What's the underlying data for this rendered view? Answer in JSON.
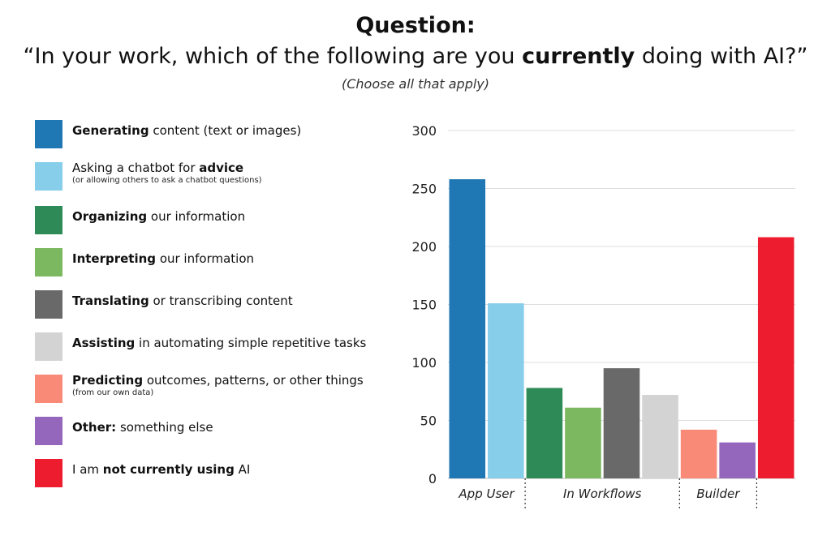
{
  "header": {
    "title": "Question:",
    "question_pre": "“In your work, which of the following are you ",
    "question_bold": "currently",
    "question_post": " doing with AI?”",
    "note": "(Choose all that apply)"
  },
  "legend": [
    {
      "bold": "Generating",
      "rest": " content (text or images)",
      "sub": "",
      "color": "#1f77b4"
    },
    {
      "pre": "Asking a chatbot for ",
      "bold": "advice",
      "rest": "",
      "sub": "(or allowing others to ask a chatbot questions)",
      "color": "#87ceeb"
    },
    {
      "bold": "Organizing",
      "rest": " our information",
      "sub": "",
      "color": "#2e8b57"
    },
    {
      "bold": "Interpreting",
      "rest": " our information",
      "sub": "",
      "color": "#7cb860"
    },
    {
      "bold": "Translating",
      "rest": " or transcribing content",
      "sub": "",
      "color": "#696969"
    },
    {
      "bold": "Assisting",
      "rest": " in automating simple repetitive tasks",
      "sub": "",
      "color": "#d3d3d3"
    },
    {
      "bold": "Predicting",
      "rest": " outcomes, patterns, or other things",
      "sub": "(from our own data)",
      "color": "#fa8a78"
    },
    {
      "bold": "Other:",
      "rest": " something else",
      "sub": "",
      "color": "#9467bd"
    },
    {
      "pre": "I am ",
      "bold": "not currently using",
      "rest": " AI",
      "sub": "",
      "color": "#ed1c2e"
    }
  ],
  "chart_data": {
    "type": "bar",
    "categories": [
      "Generating content (text or images)",
      "Asking a chatbot for advice",
      "Organizing our information",
      "Interpreting our information",
      "Translating or transcribing content",
      "Assisting in automating simple repetitive tasks",
      "Predicting outcomes, patterns, or other things",
      "Other: something else",
      "I am not currently using AI"
    ],
    "values": [
      258,
      151,
      78,
      61,
      95,
      72,
      42,
      31,
      208
    ],
    "colors": [
      "#1f77b4",
      "#87ceeb",
      "#2e8b57",
      "#7cb860",
      "#696969",
      "#d3d3d3",
      "#fa8a78",
      "#9467bd",
      "#ed1c2e"
    ],
    "ylim": [
      0,
      300
    ],
    "yticks": [
      0,
      50,
      100,
      150,
      200,
      250,
      300
    ],
    "groups": [
      {
        "label": "App User",
        "bars": [
          0,
          1
        ]
      },
      {
        "label": "In Workflows",
        "bars": [
          2,
          3,
          4,
          5
        ]
      },
      {
        "label": "Builder",
        "bars": [
          6,
          7
        ]
      }
    ],
    "grid": true
  }
}
